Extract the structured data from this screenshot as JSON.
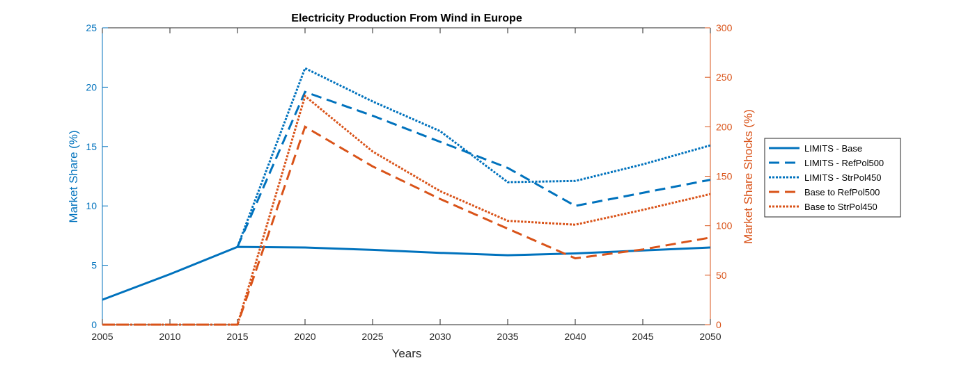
{
  "chart_data": {
    "type": "line",
    "title": "Electricity Production From Wind in Europe",
    "xlabel": "Years",
    "ylabel_left": "Market Share (%)",
    "ylabel_right": "Market Share Shocks (%)",
    "x": [
      2005,
      2010,
      2015,
      2020,
      2025,
      2030,
      2035,
      2040,
      2045,
      2050
    ],
    "x_ticks": [
      2005,
      2010,
      2015,
      2020,
      2025,
      2030,
      2035,
      2040,
      2045,
      2050
    ],
    "xlim": [
      2005,
      2050
    ],
    "ylim_left": [
      0,
      25
    ],
    "yticks_left": [
      0,
      5,
      10,
      15,
      20,
      25
    ],
    "ylim_right": [
      0,
      300
    ],
    "yticks_right": [
      0,
      50,
      100,
      150,
      200,
      250,
      300
    ],
    "colors": {
      "left": "#0072BD",
      "right": "#D95319"
    },
    "grid": false,
    "legend_position": "right outside",
    "series": [
      {
        "name": "LIMITS - Base",
        "axis": "left",
        "style": "solid",
        "values": [
          2.1,
          4.25,
          6.55,
          6.5,
          6.3,
          6.05,
          5.85,
          6.0,
          6.25,
          6.5
        ]
      },
      {
        "name": "LIMITS - RefPol500",
        "axis": "left",
        "style": "dashed",
        "values": [
          null,
          null,
          6.55,
          19.6,
          17.6,
          15.4,
          13.2,
          10.0,
          11.1,
          12.2
        ]
      },
      {
        "name": "LIMITS - StrPol450",
        "axis": "left",
        "style": "dotted",
        "values": [
          null,
          null,
          6.55,
          21.6,
          18.8,
          16.3,
          12.0,
          12.1,
          13.5,
          15.1
        ]
      },
      {
        "name": "Base to RefPol500",
        "axis": "right",
        "style": "dashed",
        "values": [
          0,
          0,
          0,
          200,
          160,
          127,
          97,
          67,
          76,
          88
        ]
      },
      {
        "name": "Base to StrPol450",
        "axis": "right",
        "style": "dotted",
        "values": [
          0,
          0,
          0,
          231,
          175,
          135,
          105,
          101,
          116,
          132
        ]
      }
    ]
  }
}
